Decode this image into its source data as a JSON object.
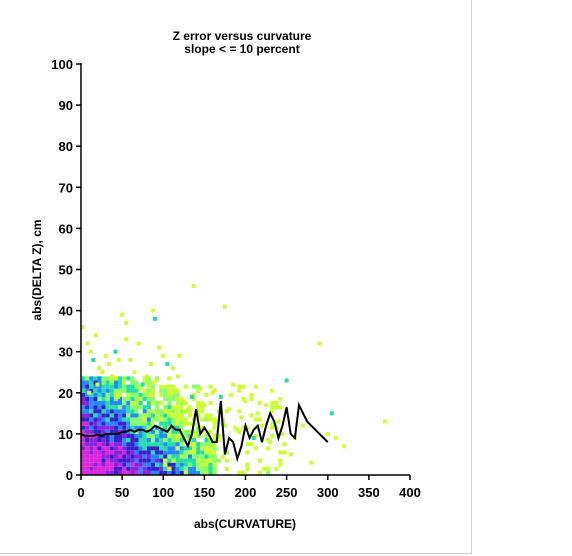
{
  "chart_data": {
    "type": "heatmap",
    "title": "Z error versus curvature",
    "subtitle": "slope < = 10 percent",
    "xlabel": "abs(CURVATURE)",
    "ylabel": "abs(DELTA Z), cm",
    "xlim": [
      0,
      400
    ],
    "ylim": [
      0,
      100
    ],
    "xticks": [
      "0",
      "50",
      "100",
      "150",
      "200",
      "250",
      "300",
      "350",
      "400"
    ],
    "yticks": [
      "0",
      "10",
      "20",
      "30",
      "40",
      "50",
      "60",
      "70",
      "80",
      "90",
      "100"
    ],
    "grid": false,
    "colors": {
      "sparse": "#ccff33",
      "low": "#88ff66",
      "mid": "#22ddaa",
      "medium": "#2288ff",
      "high": "#3322cc",
      "higher": "#8822dd",
      "highest": "#dd22dd",
      "line": "#000000"
    },
    "mean_line": {
      "name": "",
      "x": [
        0,
        5,
        10,
        15,
        20,
        25,
        30,
        35,
        40,
        45,
        50,
        55,
        60,
        65,
        70,
        75,
        80,
        85,
        90,
        95,
        100,
        105,
        110,
        115,
        120,
        125,
        130,
        135,
        140,
        145,
        150,
        155,
        160,
        165,
        170,
        175,
        180,
        185,
        190,
        195,
        200,
        205,
        210,
        215,
        220,
        225,
        230,
        235,
        240,
        245,
        250,
        255,
        260,
        265,
        270,
        275,
        280,
        285,
        290,
        295,
        300
      ],
      "y": [
        10,
        9.5,
        9.5,
        9.5,
        9.8,
        9.5,
        10,
        10,
        10,
        10,
        10.5,
        10.5,
        11,
        10.5,
        11,
        11,
        10.5,
        11,
        12,
        11.5,
        11,
        10.5,
        12,
        11,
        11,
        9,
        7,
        10,
        16,
        10,
        11.5,
        10,
        8,
        8,
        18,
        5,
        9,
        8,
        4,
        7,
        12,
        9,
        11,
        12,
        8,
        12,
        15,
        13,
        9,
        12,
        16.5,
        10,
        9,
        17,
        15,
        13,
        12,
        11,
        10,
        9,
        8
      ]
    },
    "scatter_points": {
      "x": [
        2,
        8,
        12,
        15,
        18,
        22,
        26,
        30,
        34,
        38,
        42,
        46,
        50,
        55,
        60,
        65,
        70,
        75,
        80,
        85,
        88,
        92,
        95,
        100,
        105,
        110,
        112,
        118,
        120,
        125,
        130,
        135,
        140,
        145,
        150,
        155,
        160,
        165,
        170,
        175,
        180,
        185,
        190,
        195,
        200,
        210,
        215,
        220,
        225,
        230,
        240,
        245,
        250,
        255,
        260,
        270,
        280,
        290,
        300,
        305,
        310,
        320,
        370,
        137,
        175,
        55,
        90,
        20,
        10,
        45,
        72
      ],
      "y": [
        36,
        32,
        30,
        28,
        34,
        26,
        25,
        29,
        27,
        24,
        30,
        28,
        39,
        33,
        28,
        25,
        32,
        22,
        24,
        27,
        40,
        23,
        31,
        29,
        27,
        20,
        26,
        24,
        29,
        18,
        16,
        19,
        15,
        21,
        17,
        14,
        20,
        13,
        19,
        12,
        16,
        22,
        11,
        14,
        18,
        9,
        15,
        12,
        17,
        8,
        13,
        10,
        23,
        5,
        9,
        12,
        3,
        32,
        10,
        15,
        9,
        7,
        13,
        46,
        41,
        37,
        38,
        22,
        20,
        19,
        21
      ]
    }
  }
}
